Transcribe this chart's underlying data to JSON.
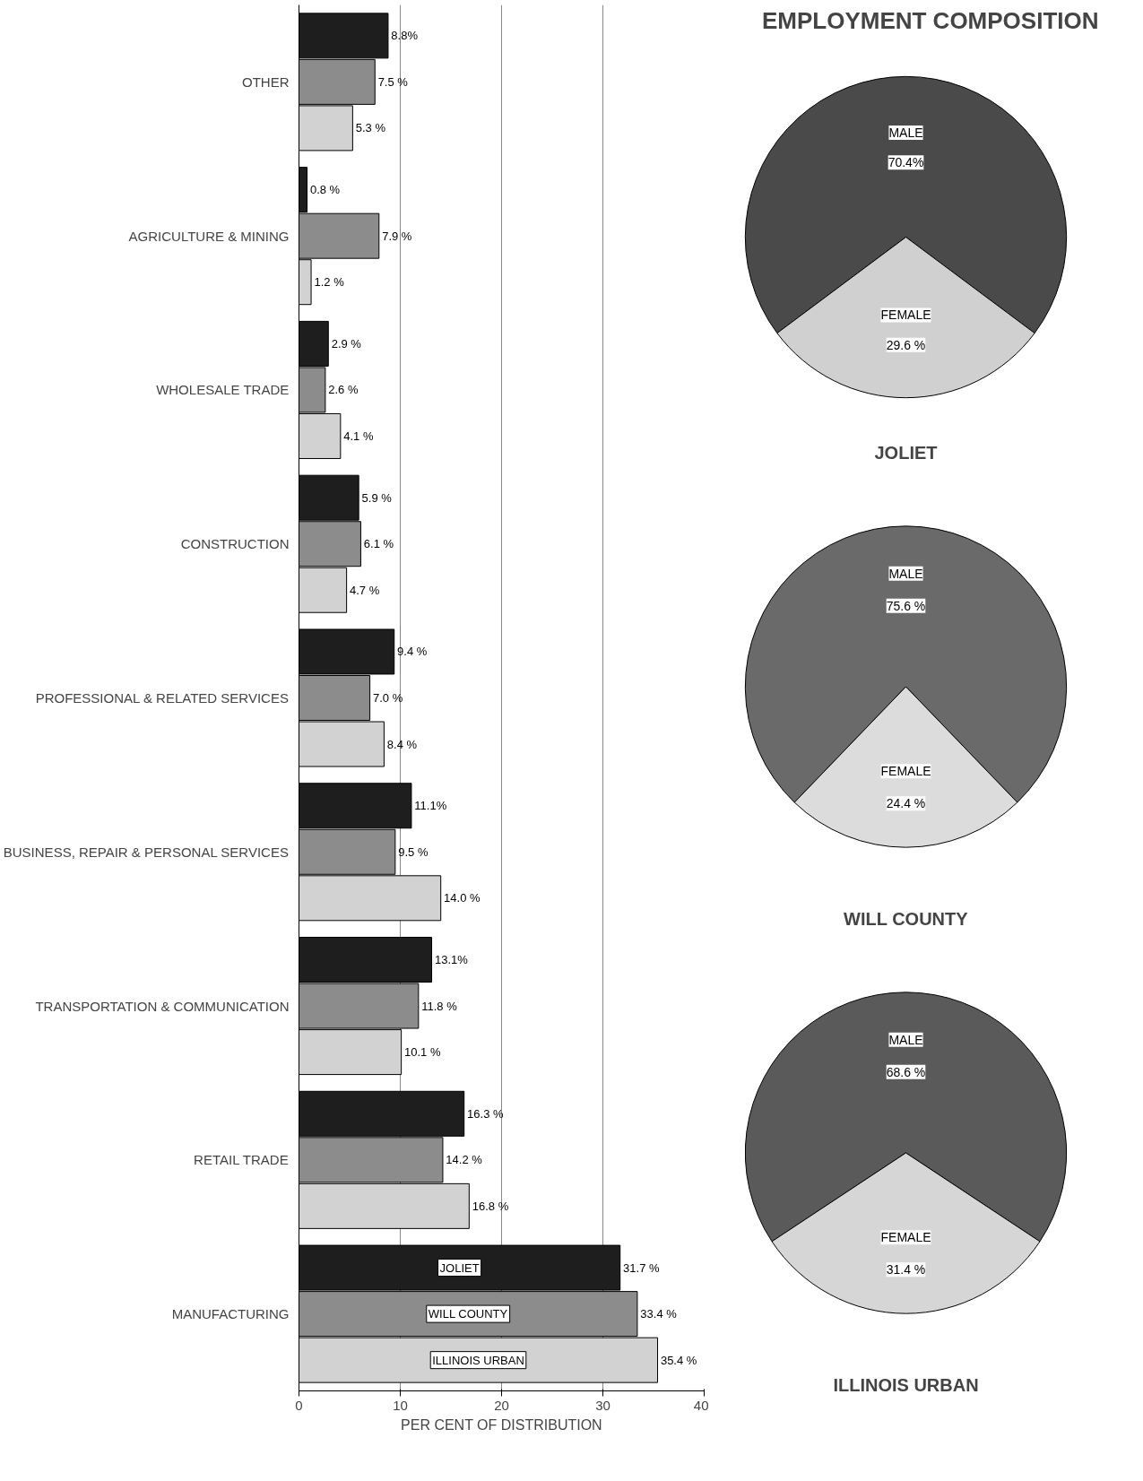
{
  "chart_data": [
    {
      "type": "bar",
      "orientation": "horizontal",
      "categories": [
        "OTHER",
        "AGRICULTURE & MINING",
        "WHOLESALE TRADE",
        "CONSTRUCTION",
        "PROFESSIONAL & RELATED SERVICES",
        "BUSINESS, REPAIR & PERSONAL SERVICES",
        "TRANSPORTATION & COMMUNICATION",
        "RETAIL TRADE",
        "MANUFACTURING"
      ],
      "series": [
        {
          "name": "JOLIET",
          "color": "#1e1e1e",
          "values": [
            8.8,
            0.8,
            2.9,
            5.9,
            9.4,
            11.1,
            13.1,
            16.3,
            31.7
          ],
          "value_labels": [
            "8.8%",
            "0.8 %",
            "2.9 %",
            "5.9 %",
            "9.4 %",
            "11.1%",
            "13.1%",
            "16.3 %",
            "31.7 %"
          ]
        },
        {
          "name": "WILL COUNTY",
          "color": "#8c8c8c",
          "values": [
            7.5,
            7.9,
            2.6,
            6.1,
            7.0,
            9.5,
            11.8,
            14.2,
            33.4
          ],
          "value_labels": [
            "7.5 %",
            "7.9 %",
            "2.6 %",
            "6.1 %",
            "7.0 %",
            "9.5 %",
            "11.8 %",
            "14.2 %",
            "33.4 %"
          ]
        },
        {
          "name": "ILLINOIS URBAN",
          "color": "#d2d2d2",
          "values": [
            5.3,
            1.2,
            4.1,
            4.7,
            8.4,
            14.0,
            10.1,
            16.8,
            35.4
          ],
          "value_labels": [
            "5.3 %",
            "1.2 %",
            "4.1 %",
            "4.7 %",
            "8.4 %",
            "14.0 %",
            "10.1 %",
            "16.8 %",
            "35.4 %"
          ]
        }
      ],
      "xlim": [
        0,
        40
      ],
      "xticks": [
        0,
        10,
        20,
        30,
        40
      ],
      "xlabel": "PER CENT OF DISTRIBUTION",
      "grid": "x"
    },
    {
      "type": "pie",
      "title": "EMPLOYMENT COMPOSITION",
      "subtitle": "JOLIET",
      "categories": [
        "MALE",
        "FEMALE"
      ],
      "values": [
        70.4,
        29.6
      ],
      "value_labels": [
        "70.4%",
        "29.6 %"
      ],
      "colors": [
        "#4a4a4a",
        "#d0d0d0"
      ]
    },
    {
      "type": "pie",
      "subtitle": "WILL COUNTY",
      "categories": [
        "MALE",
        "FEMALE"
      ],
      "values": [
        75.6,
        24.4
      ],
      "value_labels": [
        "75.6 %",
        "24.4 %"
      ],
      "colors": [
        "#6a6a6a",
        "#dcdcdc"
      ]
    },
    {
      "type": "pie",
      "subtitle": "ILLINOIS URBAN",
      "categories": [
        "MALE",
        "FEMALE"
      ],
      "values": [
        68.6,
        31.4
      ],
      "value_labels": [
        "68.6 %",
        "31.4 %"
      ],
      "colors": [
        "#5a5a5a",
        "#d6d6d6"
      ]
    }
  ]
}
